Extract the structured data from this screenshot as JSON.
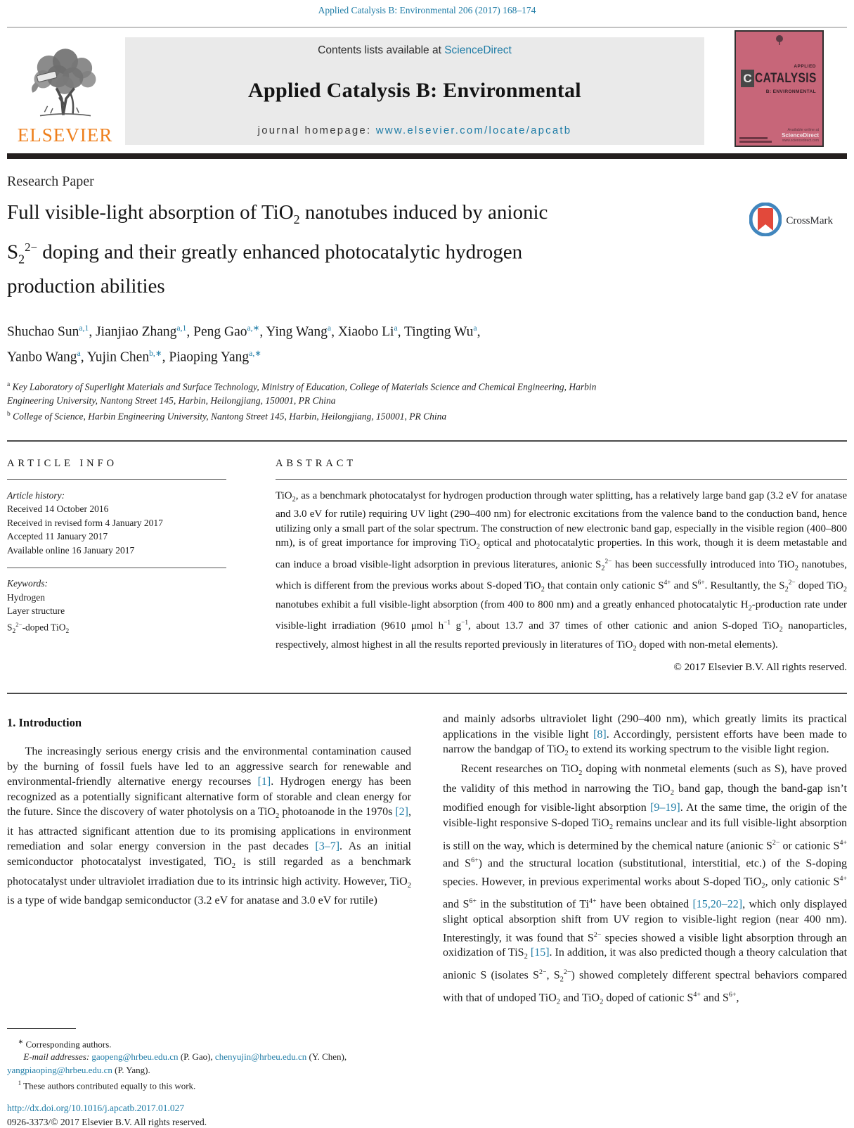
{
  "colors": {
    "link_teal": "#1f7ca6",
    "elsevier_orange": "#ee7f1c",
    "cover_pink": "#c76679",
    "masthead_gray": "#eaeaea",
    "black_bar": "#241f1e",
    "crossmark_blue": "#4186bd",
    "crossmark_red": "#e2493b"
  },
  "header": {
    "citation": "Applied Catalysis B: Environmental 206 (2017) 168–174",
    "contents_prefix": "Contents lists available at ",
    "sciencedirect_label": "ScienceDirect",
    "journal_title": "Applied Catalysis B: Environmental",
    "homepage_prefix": "journal homepage: ",
    "homepage_url": "www.elsevier.com/locate/apcatb",
    "elsevier_label": "ELSEVIER",
    "crossmark_label": "CrossMark",
    "cover": {
      "applied": "APPLIED",
      "initial": "C",
      "title": "CATALYSIS",
      "subtitle": "B: ENVIRONMENTAL",
      "available": "Available online at",
      "sciencedirect": "ScienceDirect",
      "url": "www.sciencedirect.com"
    }
  },
  "article": {
    "type_label": "Research Paper",
    "title_rich": [
      {
        "t": "Full visible-light absorption of TiO"
      },
      {
        "t": "2",
        "s": "sub"
      },
      {
        "t": " nanotubes induced by anionic"
      },
      {
        "s": "br"
      },
      {
        "t": "S"
      },
      {
        "t": "2",
        "s": "sub"
      },
      {
        "t": "2−",
        "s": "sup"
      },
      {
        "t": " doping and their greatly enhanced photocatalytic hydrogen"
      },
      {
        "s": "br"
      },
      {
        "t": "production abilities"
      }
    ],
    "authors_rich": [
      {
        "t": "Shuchao Sun"
      },
      {
        "t": "a,1",
        "s": "suplink"
      },
      {
        "t": ", Jianjiao Zhang"
      },
      {
        "t": "a,1",
        "s": "suplink"
      },
      {
        "t": ", Peng Gao"
      },
      {
        "t": "a,∗",
        "s": "suplink"
      },
      {
        "t": ", Ying Wang"
      },
      {
        "t": "a",
        "s": "suplink"
      },
      {
        "t": ", Xiaobo Li"
      },
      {
        "t": "a",
        "s": "suplink"
      },
      {
        "t": ", Tingting Wu"
      },
      {
        "t": "a",
        "s": "suplink"
      },
      {
        "t": ","
      },
      {
        "s": "br"
      },
      {
        "t": "Yanbo Wang"
      },
      {
        "t": "a",
        "s": "suplink"
      },
      {
        "t": ", Yujin Chen"
      },
      {
        "t": "b,∗",
        "s": "suplink"
      },
      {
        "t": ", Piaoping Yang"
      },
      {
        "t": "a,∗",
        "s": "suplink"
      }
    ],
    "affiliation_a_rich": [
      {
        "t": "a",
        "s": "sup"
      },
      {
        "t": " Key Laboratory of Superlight Materials and Surface Technology, Ministry of Education, College of Materials Science and Chemical Engineering, Harbin"
      },
      {
        "s": "br"
      },
      {
        "t": "Engineering University, Nantong Street 145, Harbin, Heilongjiang, 150001, PR China"
      }
    ],
    "affiliation_b_rich": [
      {
        "t": "b",
        "s": "sup"
      },
      {
        "t": " College of Science, Harbin Engineering University, Nantong Street 145, Harbin, Heilongjiang, 150001, PR China"
      }
    ]
  },
  "info": {
    "heading": "ARTICLE INFO",
    "history_label": "Article history:",
    "history": [
      "Received 14 October 2016",
      "Received in revised form 4 January 2017",
      "Accepted 11 January 2017",
      "Available online 16 January 2017"
    ],
    "keywords_label": "Keywords:",
    "keywords_rich": [
      [
        {
          "t": "Hydrogen"
        }
      ],
      [
        {
          "t": "Layer structure"
        }
      ],
      [
        {
          "t": "S"
        },
        {
          "t": "2",
          "s": "sub"
        },
        {
          "t": "2−",
          "s": "sup"
        },
        {
          "t": "-doped TiO"
        },
        {
          "t": "2",
          "s": "sub"
        }
      ]
    ]
  },
  "abstract": {
    "heading": "ABSTRACT",
    "body_rich": [
      {
        "t": "TiO"
      },
      {
        "t": "2",
        "s": "sub"
      },
      {
        "t": ", as a benchmark photocatalyst for hydrogen production through water splitting, has a relatively large band gap (3.2 eV for anatase and 3.0 eV for rutile) requiring UV light (290–400 nm) for electronic excitations from the valence band to the conduction band, hence utilizing only a small part of the solar spectrum. The construction of new electronic band gap, especially in the visible region (400–800 nm), is of great importance for improving TiO"
      },
      {
        "t": "2",
        "s": "sub"
      },
      {
        "t": " optical and photocatalytic properties. In this work, though it is deem metastable and can induce a broad visible-light adsorption in previous literatures, anionic S"
      },
      {
        "t": "2",
        "s": "sub"
      },
      {
        "t": "2−",
        "s": "sup"
      },
      {
        "t": " has been successfully introduced into TiO"
      },
      {
        "t": "2",
        "s": "sub"
      },
      {
        "t": " nanotubes, which is different from the previous works about S-doped TiO"
      },
      {
        "t": "2",
        "s": "sub"
      },
      {
        "t": " that contain only cationic S"
      },
      {
        "t": "4+",
        "s": "sup"
      },
      {
        "t": " and S"
      },
      {
        "t": "6+",
        "s": "sup"
      },
      {
        "t": ". Resultantly, the S"
      },
      {
        "t": "2",
        "s": "sub"
      },
      {
        "t": "2−",
        "s": "sup"
      },
      {
        "t": " doped TiO"
      },
      {
        "t": "2",
        "s": "sub"
      },
      {
        "t": " nanotubes exhibit a full visible-light absorption (from 400 to 800 nm) and a greatly enhanced photocatalytic H"
      },
      {
        "t": "2",
        "s": "sub"
      },
      {
        "t": "-production rate under visible-light irradiation (9610 μmol h"
      },
      {
        "t": "−1",
        "s": "sup"
      },
      {
        "t": " g"
      },
      {
        "t": "−1",
        "s": "sup"
      },
      {
        "t": ", about 13.7 and 37 times of other cationic and anion S-doped TiO"
      },
      {
        "t": "2",
        "s": "sub"
      },
      {
        "t": " nanoparticles, respectively, almost highest in all the results reported previously in literatures of TiO"
      },
      {
        "t": "2",
        "s": "sub"
      },
      {
        "t": " doped with non-metal elements)."
      }
    ],
    "copyright": "© 2017 Elsevier B.V. All rights reserved."
  },
  "intro": {
    "heading": "1. Introduction",
    "left_par_rich": [
      {
        "t": "The increasingly serious energy crisis and the environmental contamination caused by the burning of fossil fuels have led to an aggressive search for renewable and environmental-friendly alternative energy recourses "
      },
      {
        "t": "[1]",
        "s": "ref"
      },
      {
        "t": ". Hydrogen energy has been recognized as a potentially significant alternative form of storable and clean energy for the future. Since the discovery of water photolysis on a TiO"
      },
      {
        "t": "2",
        "s": "sub"
      },
      {
        "t": " photoanode in the 1970s "
      },
      {
        "t": "[2]",
        "s": "ref"
      },
      {
        "t": ", it has attracted significant attention due to its promising applications in environment remediation and solar energy conversion in the past decades "
      },
      {
        "t": "[3–7]",
        "s": "ref"
      },
      {
        "t": ". As an initial semiconductor photocatalyst investigated, TiO"
      },
      {
        "t": "2",
        "s": "sub"
      },
      {
        "t": " is still regarded as a benchmark photocatalyst under ultraviolet irradiation due to its intrinsic high activity. However, TiO"
      },
      {
        "t": "2",
        "s": "sub"
      },
      {
        "t": " is a type of wide bandgap semiconductor (3.2 eV for anatase and 3.0 eV for rutile)"
      }
    ],
    "right_par1_rich": [
      {
        "t": "and mainly adsorbs ultraviolet light (290–400 nm), which greatly limits its practical applications in the visible light "
      },
      {
        "t": "[8]",
        "s": "ref"
      },
      {
        "t": ". Accordingly, persistent efforts have been made to narrow the bandgap of TiO"
      },
      {
        "t": "2",
        "s": "sub"
      },
      {
        "t": " to extend its working spectrum to the visible light region."
      }
    ],
    "right_par2_rich": [
      {
        "t": "Recent researches on TiO"
      },
      {
        "t": "2",
        "s": "sub"
      },
      {
        "t": " doping with nonmetal elements (such as S), have proved the validity of this method in narrowing the TiO"
      },
      {
        "t": "2",
        "s": "sub"
      },
      {
        "t": " band gap, though the band-gap isn’t modified enough for visible-light absorption "
      },
      {
        "t": "[9–19]",
        "s": "ref"
      },
      {
        "t": ". At the same time, the origin of the visible-light responsive S-doped TiO"
      },
      {
        "t": "2",
        "s": "sub"
      },
      {
        "t": " remains unclear and its full visible-light absorption is still on the way, which is determined by the chemical nature (anionic S"
      },
      {
        "t": "2−",
        "s": "sup"
      },
      {
        "t": " or cationic S"
      },
      {
        "t": "4+",
        "s": "sup"
      },
      {
        "t": " and S"
      },
      {
        "t": "6+",
        "s": "sup"
      },
      {
        "t": ") and the structural location (substitutional, interstitial, etc.) of the S-doping species. However, in previous experimental works about S-doped TiO"
      },
      {
        "t": "2",
        "s": "sub"
      },
      {
        "t": ", only cationic S"
      },
      {
        "t": "4+",
        "s": "sup"
      },
      {
        "t": " and S"
      },
      {
        "t": "6+",
        "s": "sup"
      },
      {
        "t": " in the substitution of Ti"
      },
      {
        "t": "4+",
        "s": "sup"
      },
      {
        "t": " have been obtained "
      },
      {
        "t": "[15,20–22]",
        "s": "ref"
      },
      {
        "t": ", which only displayed slight optical absorption shift from UV region to visible-light region (near 400 nm). Interestingly, it was found that S"
      },
      {
        "t": "2−",
        "s": "sup"
      },
      {
        "t": " species showed a visible light absorption through an oxidization of TiS"
      },
      {
        "t": "2",
        "s": "sub"
      },
      {
        "t": " "
      },
      {
        "t": "[15]",
        "s": "ref"
      },
      {
        "t": ". In addition, it was also predicted though a theory calculation that anionic S (isolates S"
      },
      {
        "t": "2−",
        "s": "sup"
      },
      {
        "t": ", S"
      },
      {
        "t": "2",
        "s": "sub"
      },
      {
        "t": "2−",
        "s": "sup"
      },
      {
        "t": ") showed completely different spectral behaviors compared with that of undoped TiO"
      },
      {
        "t": "2",
        "s": "sub"
      },
      {
        "t": " and TiO"
      },
      {
        "t": "2",
        "s": "sub"
      },
      {
        "t": " doped of cationic S"
      },
      {
        "t": "4+",
        "s": "sup"
      },
      {
        "t": " and S"
      },
      {
        "t": "6+",
        "s": "sup"
      },
      {
        "t": ","
      }
    ]
  },
  "footnotes": {
    "corresponding_rich": [
      {
        "t": "∗",
        "s": "sup"
      },
      {
        "t": " Corresponding authors."
      }
    ],
    "emails_rich": [
      {
        "t": "E-mail addresses: ",
        "s": "i"
      },
      {
        "t": "gaopeng@hrbeu.edu.cn",
        "s": "link"
      },
      {
        "t": " (P. Gao), "
      },
      {
        "t": "chenyujin@hrbeu.edu.cn",
        "s": "link"
      },
      {
        "t": " (Y. Chen), "
      },
      {
        "t": "yangpiaoping@hrbeu.edu.cn",
        "s": "link"
      },
      {
        "t": " (P. Yang)."
      }
    ],
    "equal_rich": [
      {
        "t": "1",
        "s": "sup"
      },
      {
        "t": " These authors contributed equally to this work."
      }
    ]
  },
  "footer": {
    "doi": "http://dx.doi.org/10.1016/j.apcatb.2017.01.027",
    "issn_line": "0926-3373/© 2017 Elsevier B.V. All rights reserved."
  }
}
